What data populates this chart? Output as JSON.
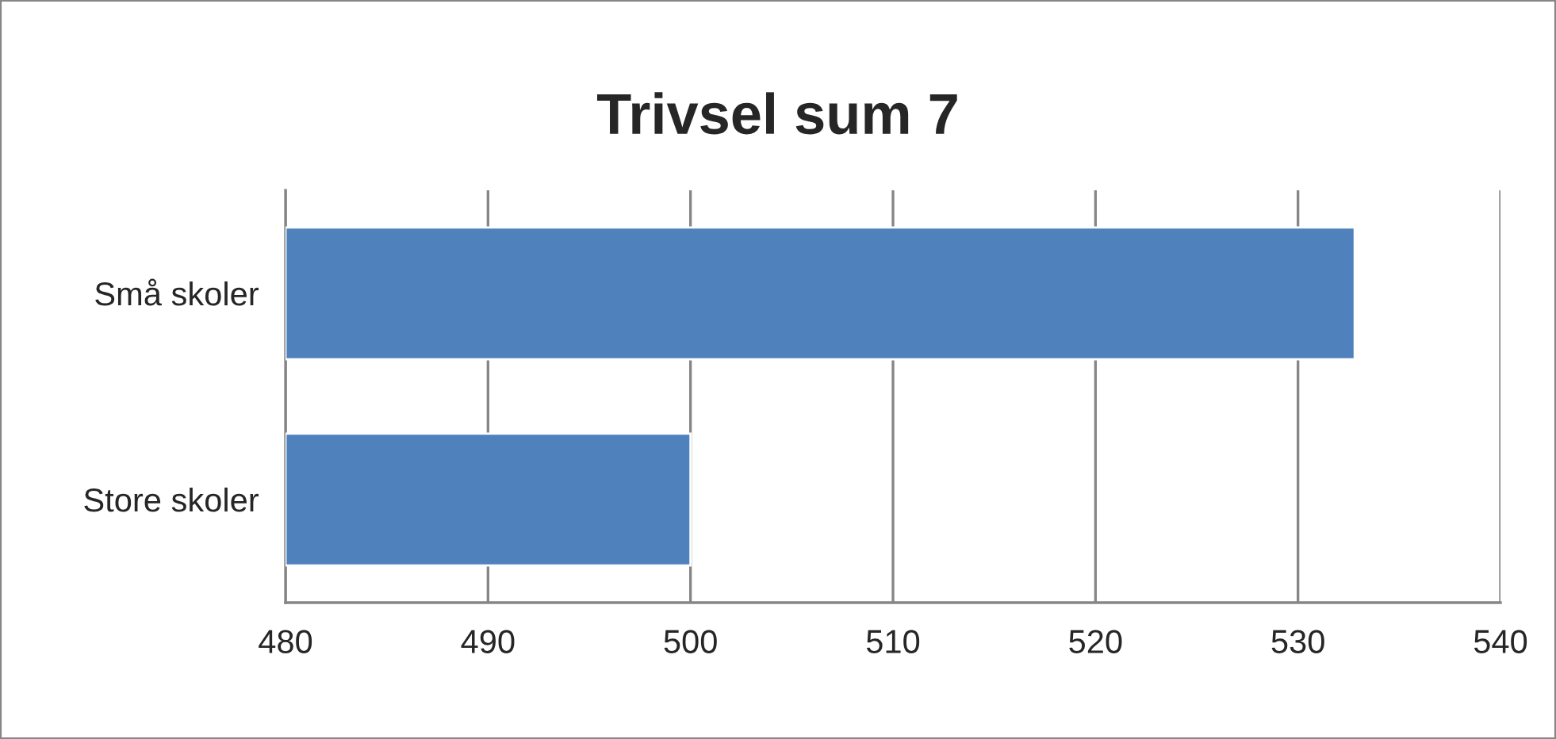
{
  "chart_data": {
    "type": "bar",
    "orientation": "horizontal",
    "title": "Trivsel sum 7",
    "categories": [
      "Små skoler",
      "Store skoler"
    ],
    "series": [
      {
        "color": "#4f81bd",
        "values": [
          532.8,
          500
        ]
      }
    ],
    "xlim": [
      480,
      540
    ],
    "xticks": [
      480,
      490,
      500,
      510,
      520,
      530,
      540
    ],
    "grid": "x",
    "legend": false
  }
}
